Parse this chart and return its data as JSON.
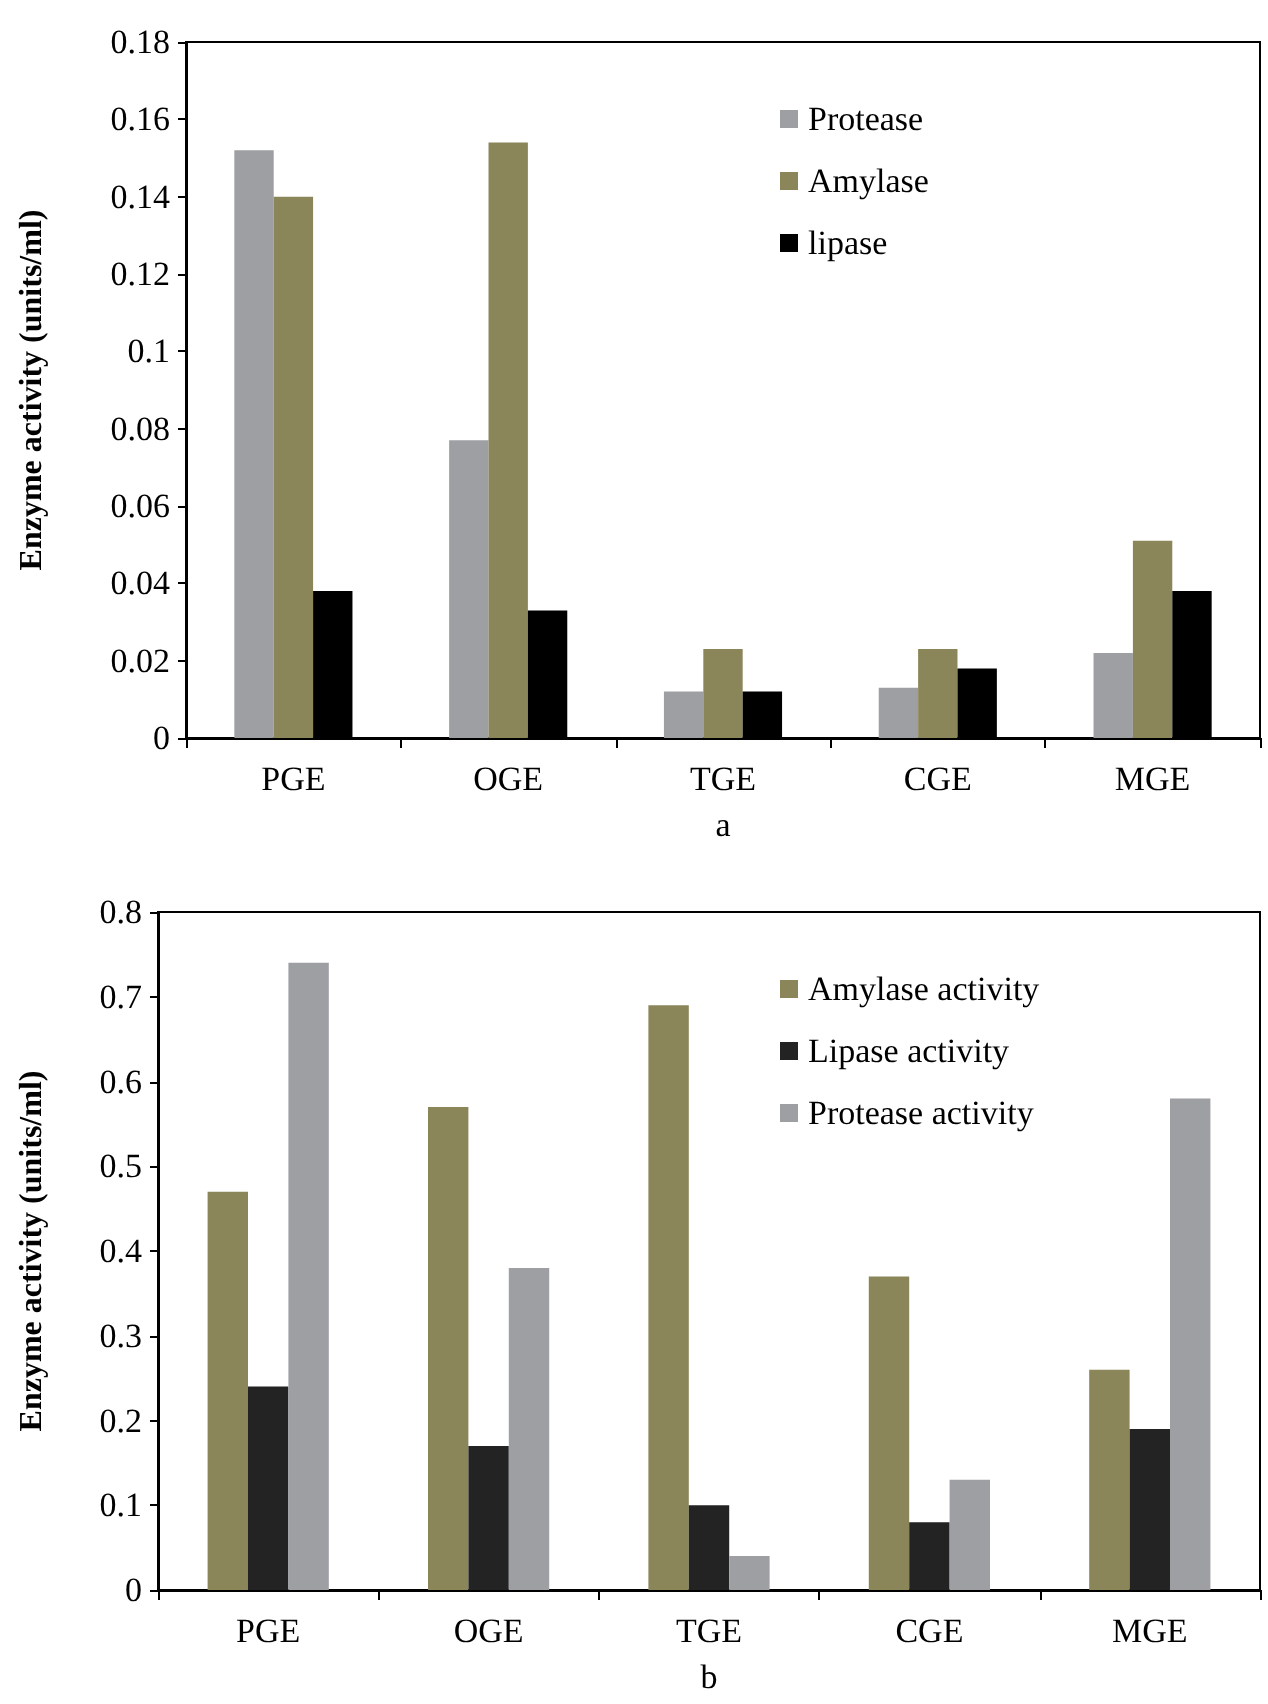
{
  "chart_data": [
    {
      "type": "bar",
      "xlabel": "a",
      "ylabel": "Enzyme activity (units/ml)",
      "categories": [
        "PGE",
        "OGE",
        "TGE",
        "CGE",
        "MGE"
      ],
      "series": [
        {
          "name": "Protease",
          "color": "#9d9fa3",
          "values": [
            0.152,
            0.077,
            0.012,
            0.013,
            0.022
          ]
        },
        {
          "name": "Amylase",
          "color": "#8b865a",
          "values": [
            0.14,
            0.154,
            0.023,
            0.023,
            0.051
          ]
        },
        {
          "name": "lipase",
          "color": "#000000",
          "values": [
            0.038,
            0.033,
            0.012,
            0.018,
            0.038
          ]
        }
      ],
      "ylim": [
        0,
        0.18
      ],
      "yticks": [
        0,
        0.02,
        0.04,
        0.06,
        0.08,
        0.1,
        0.12,
        0.14,
        0.16,
        0.18
      ],
      "grid": false,
      "legend": "top right"
    },
    {
      "type": "bar",
      "xlabel": "b",
      "ylabel": "Enzyme activity (units/ml)",
      "categories": [
        "PGE",
        "OGE",
        "TGE",
        "CGE",
        "MGE"
      ],
      "series": [
        {
          "name": "Amylase activity",
          "color": "#8b865a",
          "values": [
            0.47,
            0.57,
            0.69,
            0.37,
            0.26
          ]
        },
        {
          "name": "Lipase activity",
          "color": "#232323",
          "values": [
            0.24,
            0.17,
            0.1,
            0.08,
            0.19
          ]
        },
        {
          "name": "Protease activity",
          "color": "#9d9fa3",
          "values": [
            0.74,
            0.38,
            0.04,
            0.13,
            0.58
          ]
        }
      ],
      "ylim": [
        0,
        0.8
      ],
      "yticks": [
        0,
        0.1,
        0.2,
        0.3,
        0.4,
        0.5,
        0.6,
        0.7,
        0.8
      ],
      "grid": false,
      "legend": "top right"
    }
  ]
}
